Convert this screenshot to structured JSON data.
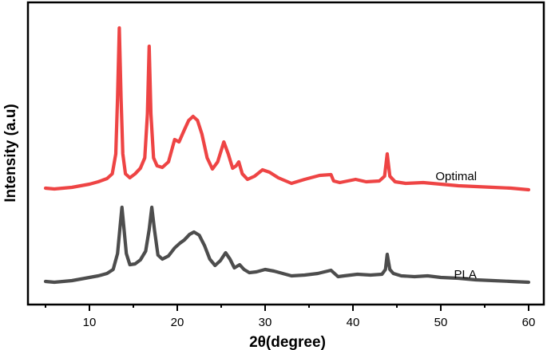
{
  "chart_data": {
    "type": "line",
    "title": "",
    "xlabel": "2θ(degree)",
    "ylabel": "Intensity (a.u)",
    "xlim": [
      5,
      60
    ],
    "ylim": [
      0,
      381
    ],
    "x_ticks": [
      10,
      20,
      30,
      40,
      50,
      60
    ],
    "x_minor_ticks": [
      5,
      15,
      25,
      35,
      45,
      55
    ],
    "y_ticks": [],
    "grid": false,
    "legend_position": "inline labels at right end of each curve",
    "series": [
      {
        "name": "Optimal",
        "color": "#ee4444",
        "label_position": {
          "x_deg": 49.4,
          "intensity": 162
        },
        "points": [
          [
            5.0,
            147
          ],
          [
            6.0,
            146
          ],
          [
            7.0,
            147
          ],
          [
            8.0,
            148
          ],
          [
            9.0,
            150
          ],
          [
            10.0,
            152
          ],
          [
            11.0,
            155
          ],
          [
            12.0,
            159
          ],
          [
            12.6,
            165
          ],
          [
            13.0,
            190
          ],
          [
            13.2,
            260
          ],
          [
            13.4,
            348
          ],
          [
            13.6,
            260
          ],
          [
            13.8,
            190
          ],
          [
            14.1,
            165
          ],
          [
            14.6,
            160
          ],
          [
            15.2,
            165
          ],
          [
            15.8,
            172
          ],
          [
            16.3,
            185
          ],
          [
            16.6,
            240
          ],
          [
            16.8,
            325
          ],
          [
            17.0,
            240
          ],
          [
            17.3,
            185
          ],
          [
            17.7,
            175
          ],
          [
            18.3,
            173
          ],
          [
            19.0,
            180
          ],
          [
            19.7,
            208
          ],
          [
            20.2,
            205
          ],
          [
            20.8,
            220
          ],
          [
            21.3,
            232
          ],
          [
            21.8,
            237
          ],
          [
            22.3,
            232
          ],
          [
            22.8,
            215
          ],
          [
            23.4,
            185
          ],
          [
            24.0,
            171
          ],
          [
            24.6,
            180
          ],
          [
            25.3,
            205
          ],
          [
            25.8,
            190
          ],
          [
            26.3,
            172
          ],
          [
            26.7,
            175
          ],
          [
            27.0,
            180
          ],
          [
            27.4,
            165
          ],
          [
            28.0,
            158
          ],
          [
            28.8,
            162
          ],
          [
            29.7,
            170
          ],
          [
            30.5,
            167
          ],
          [
            31.5,
            160
          ],
          [
            33.0,
            153
          ],
          [
            34.5,
            158
          ],
          [
            36.2,
            163
          ],
          [
            37.5,
            164
          ],
          [
            37.8,
            156
          ],
          [
            38.5,
            154
          ],
          [
            40.3,
            158
          ],
          [
            41.5,
            155
          ],
          [
            43.0,
            156
          ],
          [
            43.6,
            162
          ],
          [
            43.9,
            190
          ],
          [
            44.2,
            162
          ],
          [
            44.8,
            155
          ],
          [
            46.0,
            153
          ],
          [
            48.0,
            154
          ],
          [
            50.0,
            152
          ],
          [
            52.0,
            150
          ],
          [
            54.0,
            149
          ],
          [
            56.0,
            148
          ],
          [
            58.0,
            147
          ],
          [
            60.0,
            145
          ]
        ]
      },
      {
        "name": "PLA",
        "color": "#4d4d4d",
        "label_position": {
          "x_deg": 51.5,
          "intensity": 39
        },
        "points": [
          [
            5.0,
            30
          ],
          [
            6.0,
            29
          ],
          [
            7.0,
            30
          ],
          [
            8.0,
            31
          ],
          [
            9.0,
            33
          ],
          [
            10.0,
            35
          ],
          [
            11.0,
            37
          ],
          [
            12.0,
            40
          ],
          [
            12.7,
            45
          ],
          [
            13.2,
            65
          ],
          [
            13.5,
            100
          ],
          [
            13.7,
            123
          ],
          [
            13.9,
            100
          ],
          [
            14.2,
            65
          ],
          [
            14.6,
            51
          ],
          [
            15.2,
            52
          ],
          [
            15.8,
            57
          ],
          [
            16.4,
            68
          ],
          [
            16.8,
            95
          ],
          [
            17.1,
            123
          ],
          [
            17.4,
            95
          ],
          [
            17.8,
            63
          ],
          [
            18.3,
            58
          ],
          [
            19.0,
            62
          ],
          [
            19.7,
            72
          ],
          [
            20.3,
            78
          ],
          [
            20.8,
            82
          ],
          [
            21.4,
            89
          ],
          [
            21.9,
            92
          ],
          [
            22.5,
            88
          ],
          [
            23.1,
            75
          ],
          [
            23.7,
            58
          ],
          [
            24.3,
            50
          ],
          [
            24.9,
            56
          ],
          [
            25.5,
            66
          ],
          [
            26.0,
            58
          ],
          [
            26.5,
            47
          ],
          [
            27.1,
            51
          ],
          [
            27.6,
            45
          ],
          [
            28.2,
            41
          ],
          [
            29.0,
            42
          ],
          [
            30.0,
            45
          ],
          [
            31.0,
            43
          ],
          [
            32.0,
            40
          ],
          [
            33.0,
            37
          ],
          [
            34.5,
            38
          ],
          [
            36.0,
            40
          ],
          [
            37.5,
            44
          ],
          [
            38.3,
            36
          ],
          [
            39.0,
            37
          ],
          [
            40.5,
            39
          ],
          [
            42.0,
            38
          ],
          [
            43.3,
            39
          ],
          [
            43.7,
            45
          ],
          [
            43.9,
            64
          ],
          [
            44.2,
            45
          ],
          [
            44.6,
            40
          ],
          [
            45.5,
            37
          ],
          [
            47.0,
            36
          ],
          [
            48.5,
            37
          ],
          [
            50.0,
            35
          ],
          [
            52.0,
            34
          ],
          [
            54.0,
            32
          ],
          [
            56.0,
            31
          ],
          [
            58.0,
            30
          ],
          [
            60.0,
            29
          ]
        ]
      }
    ]
  },
  "labels": {
    "x_ticks": [
      "10",
      "20",
      "30",
      "40",
      "50",
      "60"
    ],
    "xlabel": "2θ(degree)",
    "ylabel": "Intensity (a.u)",
    "series_optimal": "Optimal",
    "series_pla": "PLA"
  }
}
